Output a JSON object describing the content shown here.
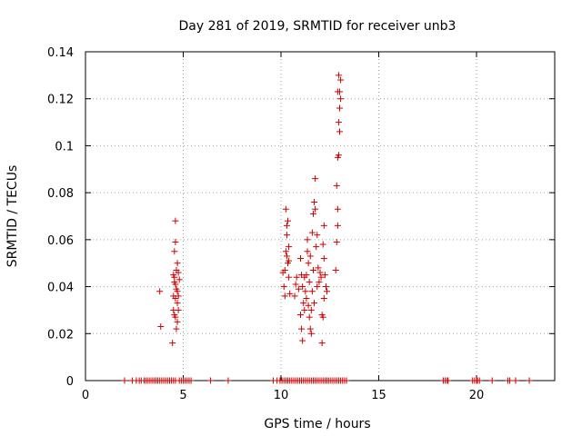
{
  "chart_data": {
    "type": "scatter",
    "title": "Day 281 of 2019, SRMTID for receiver unb3",
    "xlabel": "GPS time / hours",
    "ylabel": "SRMTID / TECUs",
    "xlim": [
      0,
      24
    ],
    "ylim": [
      0,
      0.14
    ],
    "grid": true,
    "marker": "+",
    "marker_color": "#cc0000",
    "x_ticks": [
      0,
      5,
      10,
      15,
      20
    ],
    "x_tick_labels": [
      "0",
      "5",
      "10",
      "15",
      "20"
    ],
    "y_ticks": [
      0,
      0.02,
      0.04,
      0.06,
      0.08,
      0.1,
      0.12,
      0.14
    ],
    "y_tick_labels": [
      "0",
      "0.02",
      "0.04",
      "0.06",
      "0.08",
      "0.1",
      "0.12",
      "0.14"
    ],
    "series": [
      {
        "name": "SRMTID",
        "points": [
          [
            3.8,
            0.038
          ],
          [
            3.85,
            0.023
          ],
          [
            4.45,
            0.016
          ],
          [
            4.5,
            0.03
          ],
          [
            4.55,
            0.055
          ],
          [
            4.6,
            0.068
          ],
          [
            4.6,
            0.059
          ],
          [
            4.55,
            0.044
          ],
          [
            4.6,
            0.041
          ],
          [
            4.65,
            0.047
          ],
          [
            4.5,
            0.036
          ],
          [
            4.55,
            0.028
          ],
          [
            4.6,
            0.027
          ],
          [
            4.7,
            0.033
          ],
          [
            4.65,
            0.022
          ],
          [
            4.7,
            0.05
          ],
          [
            4.75,
            0.046
          ],
          [
            4.7,
            0.038
          ],
          [
            4.6,
            0.035
          ],
          [
            4.75,
            0.03
          ],
          [
            4.55,
            0.042
          ],
          [
            4.65,
            0.039
          ],
          [
            4.8,
            0.043
          ],
          [
            4.7,
            0.025
          ],
          [
            4.5,
            0.045
          ],
          [
            4.75,
            0.036
          ],
          [
            10.1,
            0.046
          ],
          [
            10.15,
            0.04
          ],
          [
            10.2,
            0.036
          ],
          [
            10.25,
            0.073
          ],
          [
            10.3,
            0.066
          ],
          [
            10.35,
            0.068
          ],
          [
            10.4,
            0.057
          ],
          [
            10.3,
            0.053
          ],
          [
            10.35,
            0.05
          ],
          [
            10.4,
            0.044
          ],
          [
            10.45,
            0.037
          ],
          [
            10.2,
            0.047
          ],
          [
            10.25,
            0.055
          ],
          [
            10.3,
            0.062
          ],
          [
            10.4,
            0.051
          ],
          [
            10.7,
            0.036
          ],
          [
            10.75,
            0.041
          ],
          [
            10.8,
            0.044
          ],
          [
            10.9,
            0.039
          ],
          [
            11.0,
            0.028
          ],
          [
            11.05,
            0.022
          ],
          [
            11.1,
            0.017
          ],
          [
            11.0,
            0.052
          ],
          [
            11.05,
            0.045
          ],
          [
            11.1,
            0.04
          ],
          [
            11.15,
            0.033
          ],
          [
            11.2,
            0.03
          ],
          [
            11.25,
            0.038
          ],
          [
            11.3,
            0.045
          ],
          [
            11.35,
            0.055
          ],
          [
            11.4,
            0.05
          ],
          [
            11.45,
            0.027
          ],
          [
            11.5,
            0.022
          ],
          [
            11.55,
            0.02
          ],
          [
            11.6,
            0.063
          ],
          [
            11.65,
            0.071
          ],
          [
            11.7,
            0.076
          ],
          [
            11.75,
            0.073
          ],
          [
            11.75,
            0.086
          ],
          [
            11.8,
            0.057
          ],
          [
            11.85,
            0.062
          ],
          [
            11.9,
            0.048
          ],
          [
            11.95,
            0.042
          ],
          [
            12.0,
            0.046
          ],
          [
            12.1,
            0.028
          ],
          [
            12.15,
            0.027
          ],
          [
            12.1,
            0.016
          ],
          [
            12.2,
            0.066
          ],
          [
            12.15,
            0.058
          ],
          [
            12.2,
            0.052
          ],
          [
            12.25,
            0.045
          ],
          [
            12.3,
            0.04
          ],
          [
            12.35,
            0.038
          ],
          [
            12.2,
            0.035
          ],
          [
            11.3,
            0.035
          ],
          [
            11.45,
            0.042
          ],
          [
            11.55,
            0.03
          ],
          [
            11.35,
            0.06
          ],
          [
            11.5,
            0.053
          ],
          [
            11.65,
            0.047
          ],
          [
            11.2,
            0.044
          ],
          [
            11.4,
            0.032
          ],
          [
            11.6,
            0.038
          ],
          [
            11.7,
            0.033
          ],
          [
            11.85,
            0.04
          ],
          [
            12.05,
            0.044
          ],
          [
            12.8,
            0.047
          ],
          [
            12.85,
            0.059
          ],
          [
            12.9,
            0.066
          ],
          [
            12.9,
            0.073
          ],
          [
            12.85,
            0.083
          ],
          [
            12.9,
            0.095
          ],
          [
            12.95,
            0.096
          ],
          [
            13.0,
            0.106
          ],
          [
            12.95,
            0.11
          ],
          [
            13.0,
            0.116
          ],
          [
            13.05,
            0.12
          ],
          [
            13.0,
            0.123
          ],
          [
            13.05,
            0.128
          ],
          [
            12.95,
            0.13
          ],
          [
            12.9,
            0.123
          ]
        ]
      }
    ],
    "zero_points_x": [
      2.0,
      2.4,
      2.6,
      2.75,
      2.85,
      3.0,
      3.1,
      3.2,
      3.3,
      3.4,
      3.5,
      3.6,
      3.7,
      3.8,
      3.9,
      4.0,
      4.1,
      4.2,
      4.3,
      4.4,
      4.5,
      4.6,
      4.8,
      4.9,
      5.0,
      5.1,
      5.2,
      5.3,
      5.4,
      6.4,
      7.3,
      9.6,
      9.8,
      9.95,
      10.05,
      10.15,
      10.25,
      10.35,
      10.45,
      10.55,
      10.65,
      10.75,
      10.85,
      10.95,
      11.05,
      11.15,
      11.25,
      11.35,
      11.45,
      11.55,
      11.65,
      11.75,
      11.85,
      11.95,
      12.05,
      12.15,
      12.25,
      12.35,
      12.45,
      12.55,
      12.65,
      12.75,
      12.85,
      12.95,
      13.05,
      13.15,
      13.25,
      13.35,
      18.3,
      18.4,
      18.5,
      18.55,
      19.8,
      19.9,
      20.0,
      20.05,
      20.15,
      20.8,
      21.6,
      21.7,
      22.0,
      22.7
    ]
  }
}
